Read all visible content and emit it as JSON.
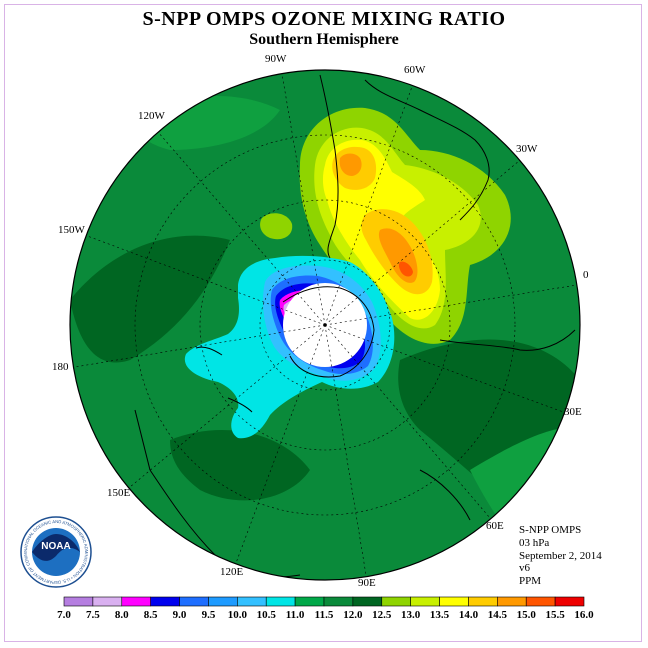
{
  "header": {
    "title": "S-NPP OMPS OZONE MIXING RATIO",
    "subtitle": "Southern Hemisphere"
  },
  "map": {
    "projection": "south polar stereographic",
    "longitude_labels": [
      "90W",
      "60W",
      "30W",
      "0",
      "30E",
      "60E",
      "90E",
      "120E",
      "150E",
      "180",
      "150W",
      "120W"
    ]
  },
  "info": {
    "instrument": "S-NPP OMPS",
    "pressure_level": "03 hPa",
    "date": "September 2, 2014",
    "version": "v6",
    "unit": "PPM"
  },
  "colorbar": {
    "ticks": [
      "7.0",
      "7.5",
      "8.0",
      "8.5",
      "9.0",
      "9.5",
      "10.0",
      "10.5",
      "11.0",
      "11.5",
      "12.0",
      "12.5",
      "13.0",
      "13.5",
      "14.0",
      "14.5",
      "15.0",
      "15.5",
      "16.0"
    ],
    "colors": [
      "#b57ee0",
      "#d9b0f0",
      "#ff00ff",
      "#0000ee",
      "#1e6eff",
      "#1e9bff",
      "#33c0ff",
      "#00e5e5",
      "#00a848",
      "#0a8a3a",
      "#006622",
      "#8fd400",
      "#c8f000",
      "#ffff00",
      "#ffcc00",
      "#ff9900",
      "#ff5500",
      "#ee0000",
      "#8b4513"
    ]
  },
  "logo": {
    "text": "NOAA",
    "ring_text": "NATIONAL OCEANIC AND ATMOSPHERIC ADMINISTRATION • U.S. DEPARTMENT OF COMMERCE"
  }
}
